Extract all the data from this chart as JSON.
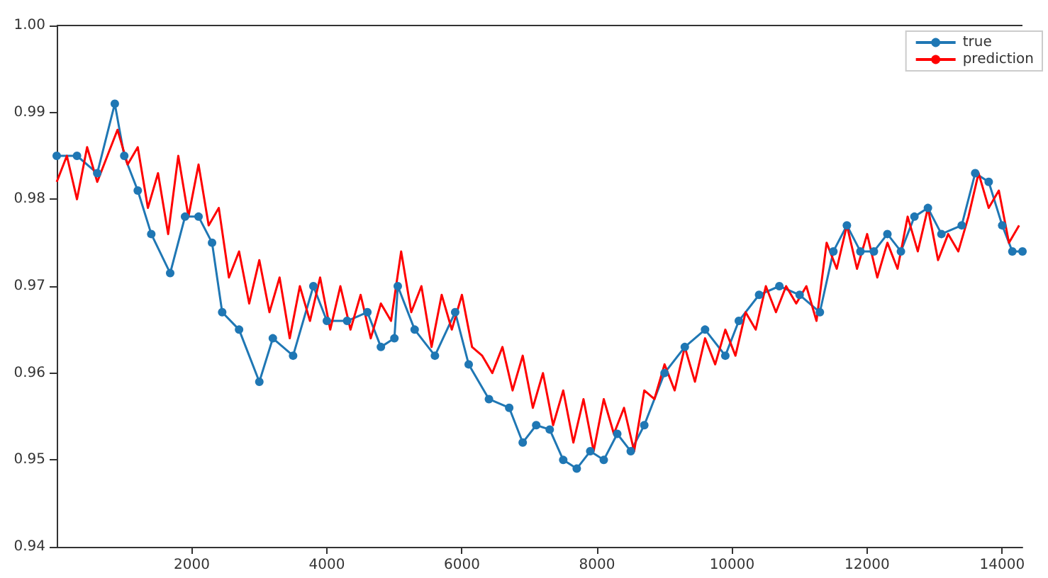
{
  "chart_data": {
    "type": "line",
    "xlim": [
      0,
      14300
    ],
    "xticks": [
      2000,
      4000,
      6000,
      8000,
      10000,
      12000,
      14000
    ],
    "ylim": [
      0.94,
      1.0
    ],
    "yticks": [
      0.94,
      0.95,
      0.96,
      0.97,
      0.98,
      0.99,
      {
        "value": 1.0,
        "label": "1.00"
      }
    ],
    "grid": false,
    "legend": "top right",
    "series": [
      {
        "name": "true",
        "color": "#1f77b4",
        "marker": "circle",
        "x": [
          0,
          300,
          600,
          860,
          1000,
          1200,
          1400,
          1680,
          1900,
          2100,
          2300,
          2450,
          2700,
          3000,
          3200,
          3500,
          3800,
          4000,
          4300,
          4600,
          4800,
          5000,
          5050,
          5300,
          5600,
          5900,
          6100,
          6400,
          6700,
          6900,
          7100,
          7300,
          7500,
          7700,
          7900,
          8100,
          8300,
          8500,
          8700,
          9000,
          9300,
          9600,
          9900,
          10100,
          10400,
          10700,
          11000,
          11300,
          11500,
          11700,
          11900,
          12100,
          12300,
          12500,
          12700,
          12900,
          13100,
          13400,
          13600,
          13800,
          14000,
          14150,
          14300
        ],
        "values": [
          0.985,
          0.985,
          0.983,
          0.991,
          0.985,
          0.981,
          0.976,
          0.9715,
          0.978,
          0.978,
          0.975,
          0.967,
          0.965,
          0.959,
          0.964,
          0.962,
          0.97,
          0.966,
          0.966,
          0.967,
          0.963,
          0.964,
          0.97,
          0.965,
          0.962,
          0.967,
          0.961,
          0.957,
          0.956,
          0.952,
          0.954,
          0.9535,
          0.95,
          0.949,
          0.951,
          0.95,
          0.953,
          0.951,
          0.954,
          0.96,
          0.963,
          0.965,
          0.962,
          0.966,
          0.969,
          0.97,
          0.969,
          0.967,
          0.974,
          0.977,
          0.974,
          0.974,
          0.976,
          0.974,
          0.978,
          0.979,
          0.976,
          0.977,
          0.983,
          0.982,
          0.977,
          0.974,
          0.974
        ]
      },
      {
        "name": "prediction",
        "color": "#ff0000",
        "marker": "none",
        "x": [
          0,
          150,
          300,
          450,
          600,
          750,
          900,
          1050,
          1200,
          1350,
          1500,
          1650,
          1800,
          1950,
          2100,
          2250,
          2400,
          2550,
          2700,
          2850,
          3000,
          3150,
          3300,
          3450,
          3600,
          3750,
          3900,
          4050,
          4200,
          4350,
          4500,
          4650,
          4800,
          4950,
          5100,
          5250,
          5400,
          5550,
          5700,
          5850,
          6000,
          6150,
          6300,
          6450,
          6600,
          6750,
          6900,
          7050,
          7200,
          7350,
          7500,
          7650,
          7800,
          7950,
          8100,
          8250,
          8400,
          8550,
          8700,
          8850,
          9000,
          9150,
          9300,
          9450,
          9600,
          9750,
          9900,
          10050,
          10200,
          10350,
          10500,
          10650,
          10800,
          10950,
          11100,
          11250,
          11400,
          11550,
          11700,
          11850,
          12000,
          12150,
          12300,
          12450,
          12600,
          12750,
          12900,
          13050,
          13200,
          13350,
          13500,
          13650,
          13800,
          13950,
          14100,
          14250
        ],
        "values": [
          0.982,
          0.985,
          0.98,
          0.986,
          0.982,
          0.985,
          0.988,
          0.984,
          0.986,
          0.979,
          0.983,
          0.976,
          0.985,
          0.978,
          0.984,
          0.977,
          0.979,
          0.971,
          0.974,
          0.968,
          0.973,
          0.967,
          0.971,
          0.964,
          0.97,
          0.966,
          0.971,
          0.965,
          0.97,
          0.965,
          0.969,
          0.964,
          0.968,
          0.966,
          0.974,
          0.967,
          0.97,
          0.963,
          0.969,
          0.965,
          0.969,
          0.963,
          0.962,
          0.96,
          0.963,
          0.958,
          0.962,
          0.956,
          0.96,
          0.954,
          0.958,
          0.952,
          0.957,
          0.951,
          0.957,
          0.953,
          0.956,
          0.951,
          0.958,
          0.957,
          0.961,
          0.958,
          0.963,
          0.959,
          0.964,
          0.961,
          0.965,
          0.962,
          0.967,
          0.965,
          0.97,
          0.967,
          0.97,
          0.968,
          0.97,
          0.966,
          0.975,
          0.972,
          0.977,
          0.972,
          0.976,
          0.971,
          0.975,
          0.972,
          0.978,
          0.974,
          0.979,
          0.973,
          0.976,
          0.974,
          0.978,
          0.983,
          0.979,
          0.981,
          0.975,
          0.977
        ]
      }
    ]
  }
}
